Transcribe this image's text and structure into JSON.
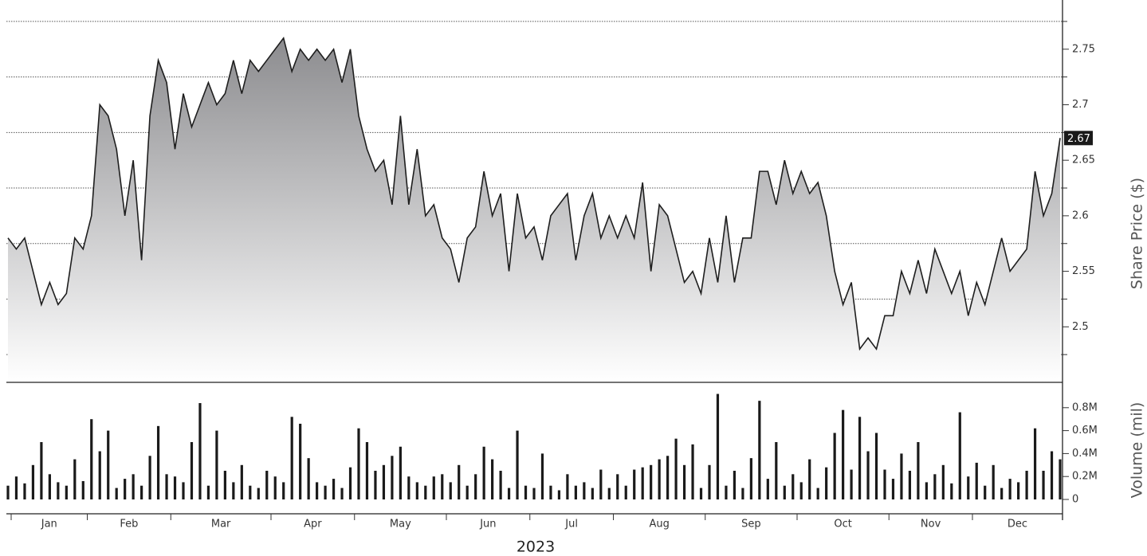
{
  "chart_data": [
    {
      "type": "area",
      "ylabel": "Share Price ($)",
      "color": "#1e1e1e",
      "fill_top": "#8c8c8f",
      "fill_bottom": "#ffffff",
      "ylim": [
        2.45,
        2.79
      ],
      "yticks": [
        2.5,
        2.55,
        2.6,
        2.65,
        2.7,
        2.75
      ],
      "ygrid": [
        2.475,
        2.525,
        2.575,
        2.625,
        2.675,
        2.725,
        2.775
      ],
      "grid": true,
      "values": [
        2.58,
        2.57,
        2.58,
        2.55,
        2.52,
        2.54,
        2.52,
        2.53,
        2.58,
        2.57,
        2.6,
        2.7,
        2.69,
        2.66,
        2.6,
        2.65,
        2.56,
        2.69,
        2.74,
        2.72,
        2.66,
        2.71,
        2.68,
        2.7,
        2.72,
        2.7,
        2.71,
        2.74,
        2.71,
        2.74,
        2.73,
        2.74,
        2.75,
        2.76,
        2.73,
        2.75,
        2.74,
        2.75,
        2.74,
        2.75,
        2.72,
        2.75,
        2.69,
        2.66,
        2.64,
        2.65,
        2.61,
        2.69,
        2.61,
        2.66,
        2.6,
        2.61,
        2.58,
        2.57,
        2.54,
        2.58,
        2.59,
        2.64,
        2.6,
        2.62,
        2.55,
        2.62,
        2.58,
        2.59,
        2.56,
        2.6,
        2.61,
        2.62,
        2.56,
        2.6,
        2.62,
        2.58,
        2.6,
        2.58,
        2.6,
        2.58,
        2.63,
        2.55,
        2.61,
        2.6,
        2.57,
        2.54,
        2.55,
        2.53,
        2.58,
        2.54,
        2.6,
        2.54,
        2.58,
        2.58,
        2.64,
        2.64,
        2.61,
        2.65,
        2.62,
        2.64,
        2.62,
        2.63,
        2.6,
        2.55,
        2.52,
        2.54,
        2.48,
        2.49,
        2.48,
        2.51,
        2.51,
        2.55,
        2.53,
        2.56,
        2.53,
        2.57,
        2.55,
        2.53,
        2.55,
        2.51,
        2.54,
        2.52,
        2.55,
        2.58,
        2.55,
        2.56,
        2.57,
        2.64,
        2.6,
        2.62,
        2.67
      ]
    },
    {
      "type": "bar",
      "ylabel": "Volume (mil)",
      "xlabel": "2023",
      "color": "#1a1a1a",
      "ylim": [
        -0.125,
        1.0
      ],
      "yticks": [
        0,
        {
          "value": 0.2,
          "label": "0.2M"
        },
        {
          "value": 0.4,
          "label": "0.4M"
        },
        {
          "value": 0.6,
          "label": "0.6M"
        },
        {
          "value": 0.8,
          "label": "0.8M"
        }
      ],
      "categories": [
        "Jan",
        null,
        null,
        null,
        null,
        null,
        null,
        null,
        null,
        null,
        "Feb",
        null,
        null,
        null,
        null,
        null,
        null,
        null,
        null,
        null,
        "Mar",
        null,
        null,
        null,
        null,
        null,
        null,
        null,
        null,
        null,
        null,
        null,
        "Apr",
        null,
        null,
        null,
        null,
        null,
        null,
        null,
        null,
        null,
        "May",
        null,
        null,
        null,
        null,
        null,
        null,
        null,
        null,
        null,
        null,
        "Jun",
        null,
        null,
        null,
        null,
        null,
        null,
        null,
        null,
        null,
        "Jul",
        null,
        null,
        null,
        null,
        null,
        null,
        null,
        null,
        null,
        "Aug",
        null,
        null,
        null,
        null,
        null,
        null,
        null,
        null,
        null,
        null,
        "Sep",
        null,
        null,
        null,
        null,
        null,
        null,
        null,
        null,
        null,
        null,
        "Oct",
        null,
        null,
        null,
        null,
        null,
        null,
        null,
        null,
        null,
        null,
        "Nov",
        null,
        null,
        null,
        null,
        null,
        null,
        null,
        null,
        null,
        "Dec",
        null,
        null,
        null,
        null,
        null,
        null,
        null,
        null,
        null,
        null
      ],
      "values": [
        0.12,
        0.2,
        0.14,
        0.3,
        0.5,
        0.22,
        0.15,
        0.12,
        0.35,
        0.16,
        0.7,
        0.42,
        0.6,
        0.1,
        0.18,
        0.22,
        0.12,
        0.38,
        0.64,
        0.22,
        0.2,
        0.15,
        0.5,
        0.84,
        0.12,
        0.6,
        0.25,
        0.15,
        0.3,
        0.12,
        0.1,
        0.25,
        0.2,
        0.15,
        0.72,
        0.66,
        0.36,
        0.15,
        0.12,
        0.18,
        0.1,
        0.28,
        0.62,
        0.5,
        0.25,
        0.3,
        0.38,
        0.46,
        0.2,
        0.15,
        0.12,
        0.2,
        0.22,
        0.15,
        0.3,
        0.12,
        0.22,
        0.46,
        0.35,
        0.25,
        0.1,
        0.6,
        0.12,
        0.1,
        0.4,
        0.12,
        0.08,
        0.22,
        0.12,
        0.15,
        0.1,
        0.26,
        0.1,
        0.22,
        0.12,
        0.26,
        0.28,
        0.3,
        0.35,
        0.38,
        0.53,
        0.3,
        0.48,
        0.1,
        0.3,
        0.92,
        0.12,
        0.25,
        0.1,
        0.36,
        0.86,
        0.18,
        0.5,
        0.12,
        0.22,
        0.15,
        0.35,
        0.1,
        0.28,
        0.58,
        0.78,
        0.26,
        0.72,
        0.42,
        0.58,
        0.26,
        0.18,
        0.4,
        0.25,
        0.5,
        0.15,
        0.22,
        0.3,
        0.14,
        0.76,
        0.2,
        0.32,
        0.12,
        0.3,
        0.1,
        0.18,
        0.15,
        0.25,
        0.62,
        0.25,
        0.42,
        0.35
      ]
    }
  ]
}
